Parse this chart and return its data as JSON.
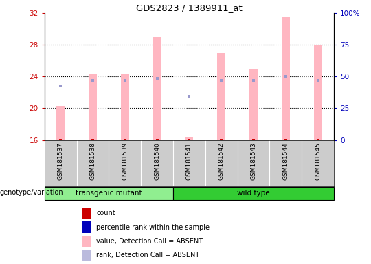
{
  "title": "GDS2823 / 1389911_at",
  "samples": [
    "GSM181537",
    "GSM181538",
    "GSM181539",
    "GSM181540",
    "GSM181541",
    "GSM181542",
    "GSM181543",
    "GSM181544",
    "GSM181545"
  ],
  "bar_values": [
    20.3,
    24.4,
    24.3,
    29.0,
    16.4,
    27.0,
    25.0,
    31.5,
    28.0
  ],
  "rank_markers": [
    22.8,
    23.5,
    23.5,
    23.8,
    21.5,
    23.5,
    23.5,
    24.0,
    23.5
  ],
  "ylim": [
    16,
    32
  ],
  "yticks_left": [
    16,
    20,
    24,
    28,
    32
  ],
  "yticks_right": [
    0,
    25,
    50,
    75,
    100
  ],
  "bar_color": "#FFB6C1",
  "rank_color": "#9999CC",
  "count_color": "#CC0000",
  "bar_width": 0.25,
  "transgenic_color": "#90EE90",
  "wildtype_color": "#33CC33",
  "transgenic_label": "transgenic mutant",
  "wildtype_label": "wild type",
  "transgenic_indices": [
    0,
    1,
    2,
    3
  ],
  "wildtype_indices": [
    4,
    5,
    6,
    7,
    8
  ],
  "ylabel_left_color": "#CC0000",
  "ylabel_right_color": "#0000BB",
  "background_color": "#FFFFFF",
  "plot_bg_color": "#FFFFFF",
  "label_area_color": "#CCCCCC",
  "dotted_grid_values": [
    20,
    24,
    28
  ],
  "legend_items": [
    {
      "color": "#CC0000",
      "label": "count",
      "square": true
    },
    {
      "color": "#0000BB",
      "label": "percentile rank within the sample",
      "square": true
    },
    {
      "color": "#FFB6C1",
      "label": "value, Detection Call = ABSENT",
      "square": true
    },
    {
      "color": "#BBBBDD",
      "label": "rank, Detection Call = ABSENT",
      "square": true
    }
  ],
  "geno_label": "genotype/variation"
}
